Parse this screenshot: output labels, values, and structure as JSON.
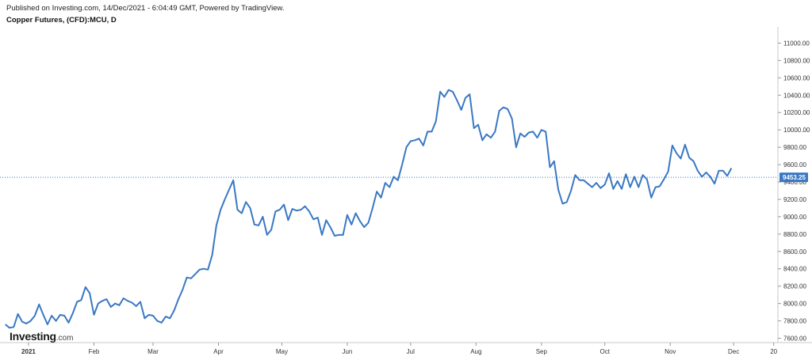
{
  "header": {
    "published": "Published on Investing.com, 14/Dec/2021 - 6:04:49 GMT, Powered by TradingView.",
    "symbol": "Copper Futures, (CFD):MCU, D"
  },
  "logo": {
    "name": "Investing",
    "domain": ".com"
  },
  "colors": {
    "line": "#3a78c3",
    "badge": "#3a78c3",
    "axis": "#c8c8c8",
    "text": "#333333"
  },
  "chart_data": {
    "type": "line",
    "title": "Copper Futures, (CFD):MCU, D",
    "xlabel": "",
    "ylabel": "",
    "ylim": [
      7550,
      11150
    ],
    "y_ticks": [
      7600,
      7800,
      8000,
      8200,
      8400,
      8600,
      8800,
      9000,
      9200,
      9400,
      9600,
      9800,
      10000,
      10200,
      10400,
      10600,
      10800,
      11000
    ],
    "y_tick_labels": [
      "7600.00",
      "7800.00",
      "8000.00",
      "8200.00",
      "8400.00",
      "8600.00",
      "8800.00",
      "9000.00",
      "9200.00",
      "9400.00",
      "9600.00",
      "9800.00",
      "10000.00",
      "10200.00",
      "10400.00",
      "10600.00",
      "10800.00",
      "11000.00"
    ],
    "x_ticks": [
      {
        "label": "2021",
        "date": "2021-01-01",
        "bold": true
      },
      {
        "label": "Feb",
        "date": "2021-02-01"
      },
      {
        "label": "Mar",
        "date": "2021-03-01"
      },
      {
        "label": "Apr",
        "date": "2021-04-01"
      },
      {
        "label": "May",
        "date": "2021-05-01"
      },
      {
        "label": "Jun",
        "date": "2021-06-01"
      },
      {
        "label": "Jul",
        "date": "2021-07-01"
      },
      {
        "label": "Aug",
        "date": "2021-08-01"
      },
      {
        "label": "Sep",
        "date": "2021-09-01"
      },
      {
        "label": "Oct",
        "date": "2021-10-01"
      },
      {
        "label": "Nov",
        "date": "2021-11-01"
      },
      {
        "label": "Dec",
        "date": "2021-12-01"
      },
      {
        "label": "20",
        "date": "2021-12-20"
      }
    ],
    "xlim": [
      "2020-12-20",
      "2021-12-22"
    ],
    "last_price": 9453.25,
    "last_price_label": "9453.25",
    "grid": false,
    "series": [
      {
        "points": [
          [
            "2020-12-21",
            7760
          ],
          [
            "2020-12-23",
            7720
          ],
          [
            "2020-12-25",
            7730
          ],
          [
            "2020-12-27",
            7880
          ],
          [
            "2020-12-29",
            7790
          ],
          [
            "2020-12-31",
            7770
          ],
          [
            "2021-01-02",
            7800
          ],
          [
            "2021-01-04",
            7860
          ],
          [
            "2021-01-06",
            7990
          ],
          [
            "2021-01-08",
            7870
          ],
          [
            "2021-01-10",
            7760
          ],
          [
            "2021-01-12",
            7860
          ],
          [
            "2021-01-14",
            7800
          ],
          [
            "2021-01-16",
            7870
          ],
          [
            "2021-01-18",
            7860
          ],
          [
            "2021-01-20",
            7780
          ],
          [
            "2021-01-22",
            7890
          ],
          [
            "2021-01-24",
            8020
          ],
          [
            "2021-01-26",
            8040
          ],
          [
            "2021-01-28",
            8190
          ],
          [
            "2021-01-30",
            8120
          ],
          [
            "2021-02-01",
            7870
          ],
          [
            "2021-02-03",
            8000
          ],
          [
            "2021-02-05",
            8030
          ],
          [
            "2021-02-07",
            8050
          ],
          [
            "2021-02-09",
            7960
          ],
          [
            "2021-02-11",
            8000
          ],
          [
            "2021-02-13",
            7980
          ],
          [
            "2021-02-15",
            8060
          ],
          [
            "2021-02-17",
            8030
          ],
          [
            "2021-02-19",
            8010
          ],
          [
            "2021-02-21",
            7970
          ],
          [
            "2021-02-23",
            8020
          ],
          [
            "2021-02-25",
            7830
          ],
          [
            "2021-02-27",
            7870
          ],
          [
            "2021-03-01",
            7860
          ],
          [
            "2021-03-03",
            7800
          ],
          [
            "2021-03-05",
            7780
          ],
          [
            "2021-03-07",
            7850
          ],
          [
            "2021-03-09",
            7830
          ],
          [
            "2021-03-11",
            7920
          ],
          [
            "2021-03-13",
            8050
          ],
          [
            "2021-03-15",
            8160
          ],
          [
            "2021-03-17",
            8300
          ],
          [
            "2021-03-19",
            8290
          ],
          [
            "2021-03-21",
            8340
          ],
          [
            "2021-03-23",
            8390
          ],
          [
            "2021-03-25",
            8400
          ],
          [
            "2021-03-27",
            8390
          ],
          [
            "2021-03-29",
            8560
          ],
          [
            "2021-03-31",
            8900
          ],
          [
            "2021-04-02",
            9080
          ],
          [
            "2021-04-04",
            9200
          ],
          [
            "2021-04-06",
            9310
          ],
          [
            "2021-04-08",
            9420
          ],
          [
            "2021-04-10",
            9080
          ],
          [
            "2021-04-12",
            9040
          ],
          [
            "2021-04-14",
            9170
          ],
          [
            "2021-04-16",
            9100
          ],
          [
            "2021-04-18",
            8910
          ],
          [
            "2021-04-20",
            8900
          ],
          [
            "2021-04-22",
            9000
          ],
          [
            "2021-04-24",
            8790
          ],
          [
            "2021-04-26",
            8850
          ],
          [
            "2021-04-28",
            9060
          ],
          [
            "2021-04-30",
            9080
          ],
          [
            "2021-05-02",
            9140
          ],
          [
            "2021-05-04",
            8960
          ],
          [
            "2021-05-06",
            9090
          ],
          [
            "2021-05-08",
            9070
          ],
          [
            "2021-05-10",
            9080
          ],
          [
            "2021-05-12",
            9120
          ],
          [
            "2021-05-14",
            9060
          ],
          [
            "2021-05-16",
            8970
          ],
          [
            "2021-05-18",
            8990
          ],
          [
            "2021-05-20",
            8790
          ],
          [
            "2021-05-22",
            8960
          ],
          [
            "2021-05-24",
            8880
          ],
          [
            "2021-05-26",
            8780
          ],
          [
            "2021-05-28",
            8790
          ],
          [
            "2021-05-30",
            8790
          ],
          [
            "2021-06-01",
            9020
          ],
          [
            "2021-06-03",
            8910
          ],
          [
            "2021-06-05",
            9040
          ],
          [
            "2021-06-07",
            8950
          ],
          [
            "2021-06-09",
            8880
          ],
          [
            "2021-06-11",
            8930
          ],
          [
            "2021-06-13",
            9100
          ],
          [
            "2021-06-15",
            9290
          ],
          [
            "2021-06-17",
            9220
          ],
          [
            "2021-06-19",
            9390
          ],
          [
            "2021-06-21",
            9340
          ],
          [
            "2021-06-23",
            9460
          ],
          [
            "2021-06-25",
            9420
          ],
          [
            "2021-06-27",
            9600
          ],
          [
            "2021-06-29",
            9800
          ],
          [
            "2021-07-01",
            9870
          ],
          [
            "2021-07-03",
            9880
          ],
          [
            "2021-07-05",
            9900
          ],
          [
            "2021-07-07",
            9820
          ],
          [
            "2021-07-09",
            9980
          ],
          [
            "2021-07-11",
            9980
          ],
          [
            "2021-07-13",
            10100
          ],
          [
            "2021-07-15",
            10440
          ],
          [
            "2021-07-17",
            10380
          ],
          [
            "2021-07-19",
            10460
          ],
          [
            "2021-07-21",
            10440
          ],
          [
            "2021-07-23",
            10340
          ],
          [
            "2021-07-25",
            10230
          ],
          [
            "2021-07-27",
            10370
          ],
          [
            "2021-07-29",
            10410
          ],
          [
            "2021-07-31",
            10020
          ],
          [
            "2021-08-02",
            10060
          ],
          [
            "2021-08-04",
            9880
          ],
          [
            "2021-08-06",
            9950
          ],
          [
            "2021-08-08",
            9910
          ],
          [
            "2021-08-10",
            9980
          ],
          [
            "2021-08-12",
            10220
          ],
          [
            "2021-08-14",
            10260
          ],
          [
            "2021-08-16",
            10240
          ],
          [
            "2021-08-18",
            10130
          ],
          [
            "2021-08-20",
            9800
          ],
          [
            "2021-08-22",
            9960
          ],
          [
            "2021-08-24",
            9920
          ],
          [
            "2021-08-26",
            9970
          ],
          [
            "2021-08-28",
            9980
          ],
          [
            "2021-08-30",
            9910
          ],
          [
            "2021-09-01",
            10000
          ],
          [
            "2021-09-03",
            9980
          ],
          [
            "2021-09-05",
            9570
          ],
          [
            "2021-09-07",
            9640
          ],
          [
            "2021-09-09",
            9310
          ],
          [
            "2021-09-11",
            9150
          ],
          [
            "2021-09-13",
            9170
          ],
          [
            "2021-09-15",
            9300
          ],
          [
            "2021-09-17",
            9480
          ],
          [
            "2021-09-19",
            9420
          ],
          [
            "2021-09-21",
            9420
          ],
          [
            "2021-09-23",
            9380
          ],
          [
            "2021-09-25",
            9340
          ],
          [
            "2021-09-27",
            9390
          ],
          [
            "2021-09-29",
            9330
          ],
          [
            "2021-10-01",
            9370
          ],
          [
            "2021-10-03",
            9500
          ],
          [
            "2021-10-05",
            9320
          ],
          [
            "2021-10-07",
            9410
          ],
          [
            "2021-10-09",
            9320
          ],
          [
            "2021-10-11",
            9490
          ],
          [
            "2021-10-13",
            9340
          ],
          [
            "2021-10-15",
            9460
          ],
          [
            "2021-10-17",
            9340
          ],
          [
            "2021-10-19",
            9480
          ],
          [
            "2021-10-21",
            9430
          ],
          [
            "2021-10-23",
            9220
          ],
          [
            "2021-10-25",
            9340
          ],
          [
            "2021-10-27",
            9350
          ],
          [
            "2021-10-29",
            9430
          ],
          [
            "2021-10-31",
            9520
          ],
          [
            "2021-11-02",
            9820
          ],
          [
            "2021-11-04",
            9730
          ],
          [
            "2021-11-06",
            9670
          ],
          [
            "2021-11-08",
            9830
          ],
          [
            "2021-11-10",
            9680
          ],
          [
            "2021-11-12",
            9640
          ],
          [
            "2021-11-14",
            9530
          ],
          [
            "2021-11-16",
            9460
          ],
          [
            "2021-11-18",
            9510
          ],
          [
            "2021-11-20",
            9460
          ],
          [
            "2021-11-22",
            9380
          ],
          [
            "2021-11-24",
            9530
          ],
          [
            "2021-11-26",
            9530
          ],
          [
            "2021-11-28",
            9470
          ],
          [
            "2021-11-30",
            9560
          ]
        ]
      }
    ]
  }
}
